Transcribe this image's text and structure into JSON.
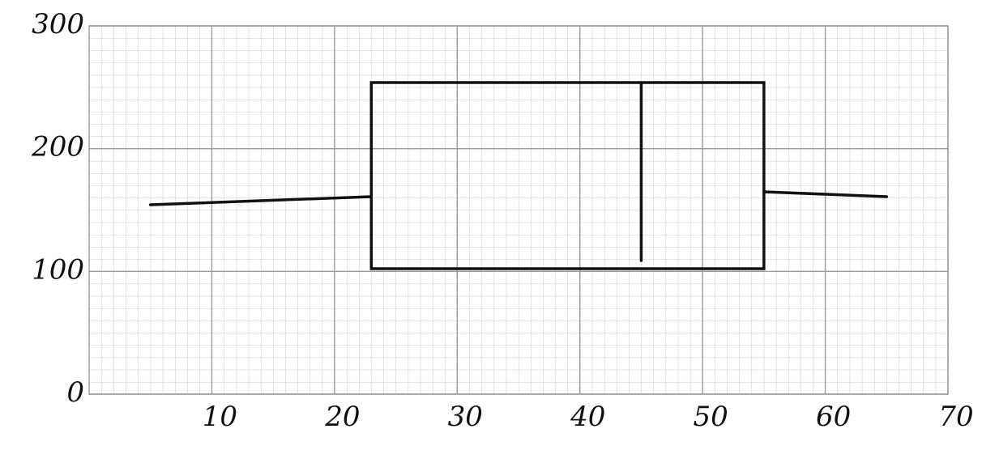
{
  "chart_data": {
    "type": "box",
    "orientation": "horizontal",
    "boxes": [
      {
        "min": 5,
        "q1": 23,
        "median": 45,
        "q3": 55,
        "max": 65
      }
    ],
    "color": "#111111",
    "xlim": [
      0,
      70
    ],
    "xticks": [
      10,
      20,
      30,
      40,
      50,
      60,
      70
    ],
    "ylim": [
      0,
      300
    ],
    "yticks": [
      0,
      100,
      200,
      300
    ],
    "grid": true
  }
}
